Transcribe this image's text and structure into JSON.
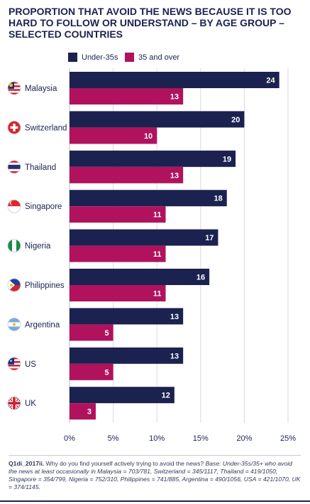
{
  "title": "PROPORTION THAT AVOID THE NEWS BECAUSE IT IS TOO HARD TO FOLLOW OR UNDERSTAND – BY AGE GROUP – SELECTED COUNTRIES",
  "colors": {
    "under35": "#1b2250",
    "over35": "#b0125d",
    "grid": "#d9dae2",
    "text": "#1b2250"
  },
  "chart_data": {
    "type": "bar",
    "orientation": "horizontal",
    "categories": [
      "Malaysia",
      "Switzerland",
      "Thailand",
      "Singapore",
      "Nigeria",
      "Philippines",
      "Argentina",
      "US",
      "UK"
    ],
    "series": [
      {
        "name": "Under-35s",
        "values": [
          24,
          20,
          19,
          18,
          17,
          16,
          13,
          13,
          12
        ]
      },
      {
        "name": "35 and over",
        "values": [
          13,
          10,
          13,
          11,
          11,
          11,
          5,
          5,
          3
        ]
      }
    ],
    "flag_icons": [
      "malaysia-flag-icon",
      "switzerland-flag-icon",
      "thailand-flag-icon",
      "singapore-flag-icon",
      "nigeria-flag-icon",
      "philippines-flag-icon",
      "argentina-flag-icon",
      "us-flag-icon",
      "uk-flag-icon"
    ],
    "xlim": [
      0,
      25
    ],
    "x_ticks": [
      "0%",
      "5%",
      "10%",
      "15%",
      "20%",
      "25%"
    ],
    "grid": true,
    "legend_position": "top"
  },
  "footnote": {
    "question": "Q1di_2017ii.",
    "text": " Why do you find yourself actively trying to avoid the news? ",
    "base": "Base: Under-35s/35+ who avoid the news at least occasionally in Malaysia = 703/781, Switzerland = 345/1117, Thailand = 419/1050, Singapore = 354/799, Nigeria = 752/310, Philippines = 741/885, Argentina = 490/1056, USA = 421/1070, UK = 374/1145."
  }
}
